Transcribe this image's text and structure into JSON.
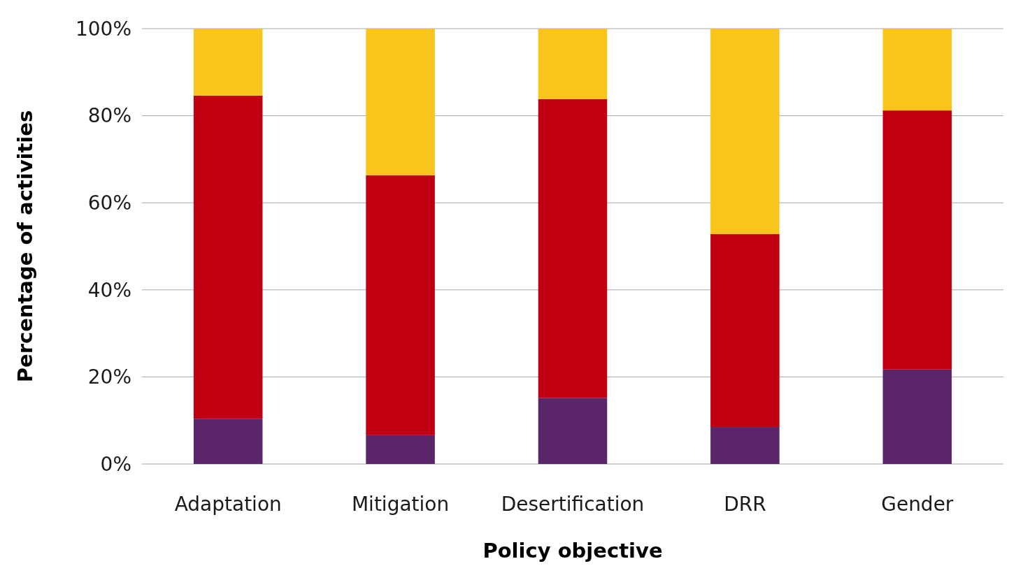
{
  "chart_data": {
    "type": "bar",
    "stacked": true,
    "xlabel": "Policy objective",
    "ylabel": "Percentage of activities",
    "categories": [
      "Adaptation",
      "Mitigation",
      "Desertification",
      "DRR",
      "Gender"
    ],
    "series": [
      {
        "color": "#5a2569",
        "values": [
          10.4,
          6.6,
          15.2,
          8.5,
          21.7
        ]
      },
      {
        "color": "#c00012",
        "values": [
          74.2,
          59.7,
          68.6,
          44.3,
          59.5
        ]
      },
      {
        "color": "#f9c41b",
        "values": [
          15.4,
          33.7,
          16.2,
          47.2,
          18.8
        ]
      }
    ],
    "ylim": [
      0,
      100
    ],
    "yticks": [
      {
        "value": 0,
        "label": "0%"
      },
      {
        "value": 20,
        "label": "20%"
      },
      {
        "value": 40,
        "label": "40%"
      },
      {
        "value": 60,
        "label": "60%"
      },
      {
        "value": 80,
        "label": "80%"
      },
      {
        "value": 100,
        "label": "100%"
      }
    ],
    "grid": "y"
  }
}
